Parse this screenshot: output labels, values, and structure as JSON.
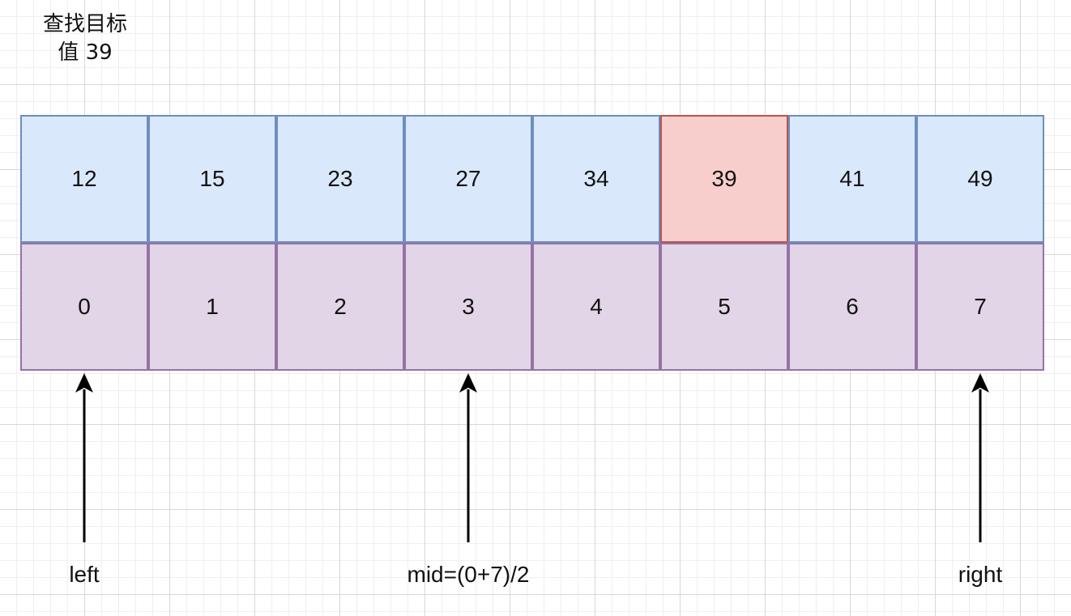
{
  "title": {
    "line1": "查找目标",
    "line2": "值 39"
  },
  "array": {
    "values": [
      "12",
      "15",
      "23",
      "27",
      "34",
      "39",
      "41",
      "49"
    ],
    "indexes": [
      "0",
      "1",
      "2",
      "3",
      "4",
      "5",
      "6",
      "7"
    ],
    "target_index": 5
  },
  "pointers": [
    {
      "label": "left",
      "index": 0
    },
    {
      "label": "mid=(0+7)/2",
      "index": 3
    },
    {
      "label": "right",
      "index": 7
    }
  ],
  "colors": {
    "value_fill": "#dae8fc",
    "value_stroke": "#6c8ebf",
    "target_fill": "#f8cecc",
    "target_stroke": "#b85450",
    "index_fill": "#e1d5e7",
    "index_stroke": "#9673a6",
    "arrow": "#000000"
  }
}
